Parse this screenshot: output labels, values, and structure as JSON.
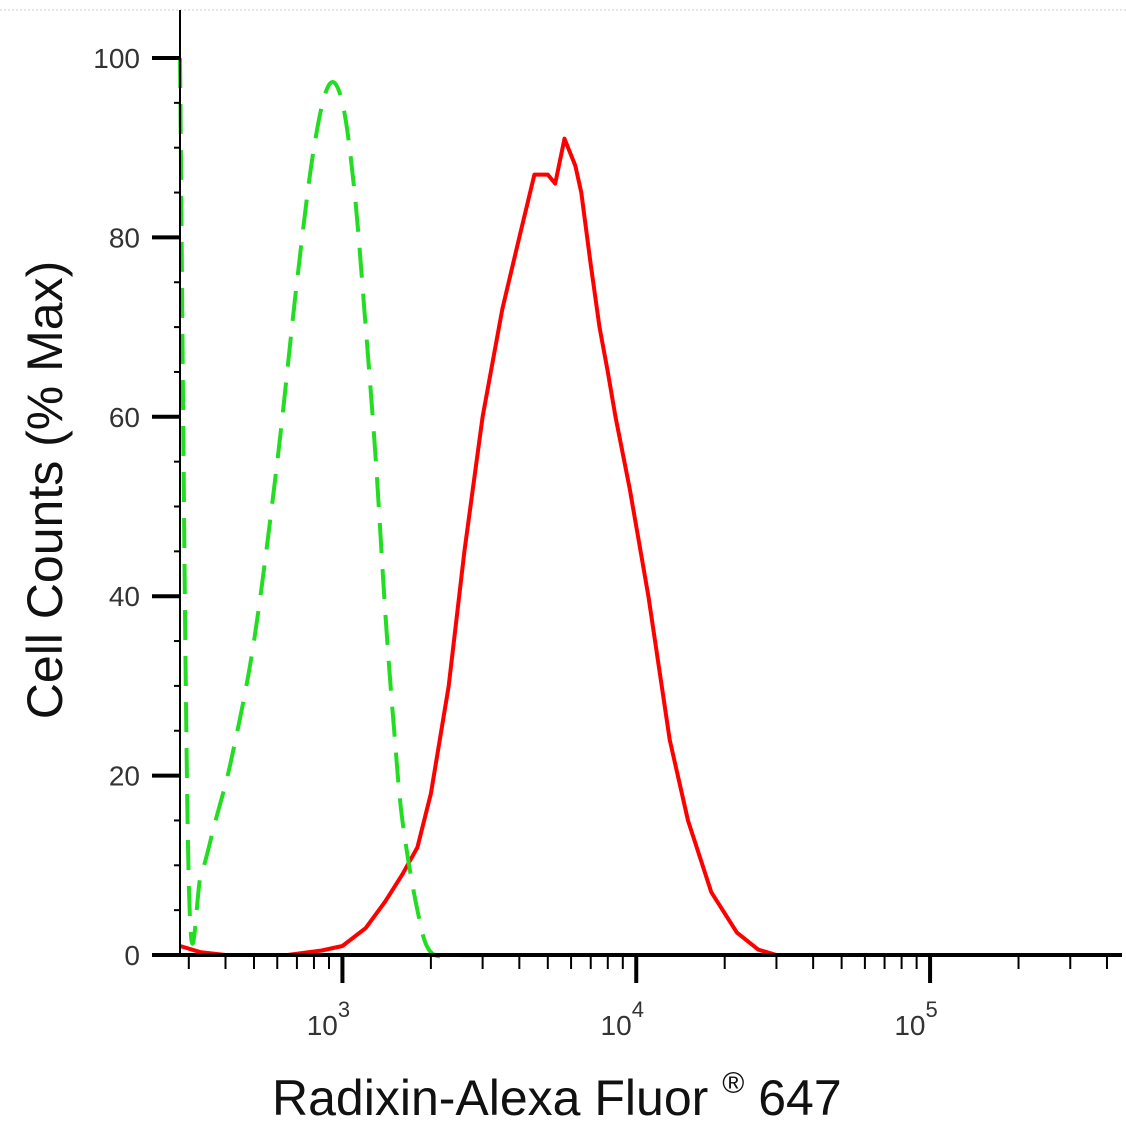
{
  "chart_data": {
    "type": "line",
    "xlabel": "Radixin-Alexa Fluor",
    "xlabel_sup": "®",
    "xlabel_suffix": " 647",
    "ylabel": "Cell Counts (% Max)",
    "x_scale": "log",
    "xlim": [
      280,
      450000
    ],
    "ylim": [
      0,
      100
    ],
    "y_ticks": [
      0,
      20,
      40,
      60,
      80,
      100
    ],
    "x_ticks": [
      {
        "value": 1000,
        "base": "10",
        "exp": "3"
      },
      {
        "value": 10000,
        "base": "10",
        "exp": "4"
      },
      {
        "value": 100000,
        "base": "10",
        "exp": "5"
      }
    ],
    "grid": false,
    "legend": "none",
    "series": [
      {
        "color": "#ff0000",
        "style": "solid",
        "x": [
          280,
          330,
          400,
          500,
          650,
          850,
          1000,
          1200,
          1400,
          1600,
          1800,
          2000,
          2300,
          2600,
          3000,
          3500,
          4000,
          4500,
          5000,
          5300,
          5700,
          6200,
          6500,
          7000,
          7500,
          8000,
          8500,
          9500,
          11000,
          13000,
          15000,
          18000,
          22000,
          26000,
          30000,
          35000,
          50000,
          100000,
          200000,
          450000
        ],
        "y": [
          1,
          0.3,
          0,
          0,
          0,
          0.5,
          1,
          3,
          6,
          9,
          12,
          18,
          30,
          45,
          60,
          72,
          80,
          87,
          87,
          86,
          91,
          88,
          85,
          77,
          70,
          65,
          60,
          52,
          40,
          24,
          15,
          7,
          2.5,
          0.6,
          0,
          0,
          0,
          0,
          0,
          0
        ]
      },
      {
        "color": "#22dd22",
        "style": "dashed",
        "x": [
          280,
          300,
          330,
          370,
          420,
          500,
          600,
          700,
          800,
          900,
          1000,
          1100,
          1200,
          1300,
          1400,
          1500,
          1600,
          1800,
          2000,
          2500,
          3500,
          6000,
          20000,
          100000,
          450000
        ],
        "y": [
          100,
          8,
          9,
          15,
          22,
          35,
          55,
          75,
          90,
          97,
          95,
          85,
          70,
          55,
          38,
          25,
          15,
          5,
          0.3,
          0,
          0,
          0,
          0,
          0,
          0
        ]
      }
    ]
  }
}
